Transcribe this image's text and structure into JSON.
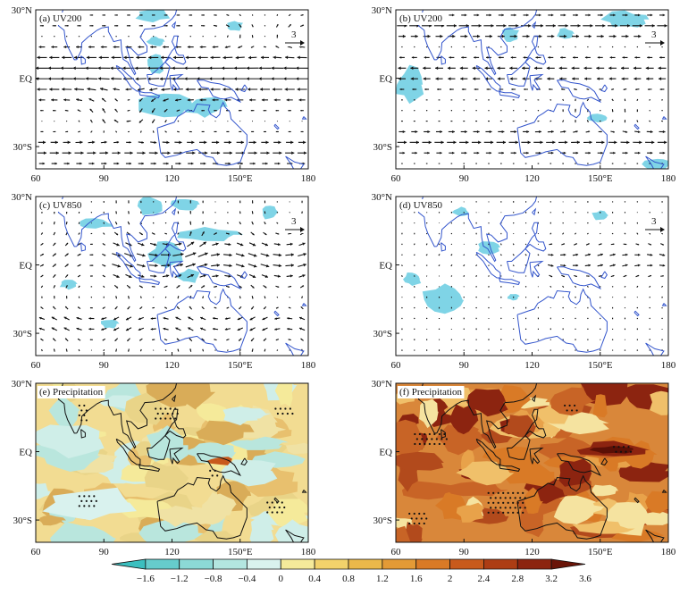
{
  "figure": {
    "panels": [
      {
        "id": "a",
        "label": "(a)  UV200",
        "kind": "wind",
        "field": "uv200",
        "ref_vector": "3",
        "show_ref": true
      },
      {
        "id": "b",
        "label": "(b)  UV200",
        "kind": "wind",
        "field": "uv200",
        "ref_vector": "3",
        "show_ref": true
      },
      {
        "id": "c",
        "label": "(c)  UV850",
        "kind": "wind",
        "field": "uv850",
        "ref_vector": "3",
        "show_ref": true
      },
      {
        "id": "d",
        "label": "(d)  UV850",
        "kind": "wind",
        "field": "uv850",
        "ref_vector": "3",
        "show_ref": true
      },
      {
        "id": "e",
        "label": "(e)  Precipitation",
        "kind": "precip",
        "field": "pr_e"
      },
      {
        "id": "f",
        "label": "(f)  Precipitation",
        "kind": "precip",
        "field": "pr_f"
      }
    ],
    "axes": {
      "x_ticks": [
        "60",
        "90",
        "120",
        "150°E",
        "180"
      ],
      "y_ticks": [
        "30°N",
        "EQ",
        "30°S"
      ],
      "lon_range": [
        60,
        180
      ],
      "lat_range": [
        30,
        -40
      ]
    },
    "colorbar": {
      "labels": [
        "−1.6",
        "−1.2",
        "−0.8",
        "−0.4",
        "0",
        "0.4",
        "0.8",
        "1.2",
        "1.6",
        "2",
        "2.4",
        "2.8",
        "3.2",
        "3.6"
      ],
      "colors": [
        "#3bbfbf",
        "#66cccc",
        "#8cd9d6",
        "#b3e6e0",
        "#d9f2ee",
        "#f5ea9a",
        "#f2d26b",
        "#ebb84a",
        "#e39a36",
        "#d97a26",
        "#c85a1c",
        "#ad3d14",
        "#8c2410",
        "#6a1408"
      ]
    },
    "colors": {
      "coast_wind": "#3355cc",
      "coast_precip": "#111111",
      "shade": "#7fd4e6",
      "arrow": "#111111"
    }
  }
}
